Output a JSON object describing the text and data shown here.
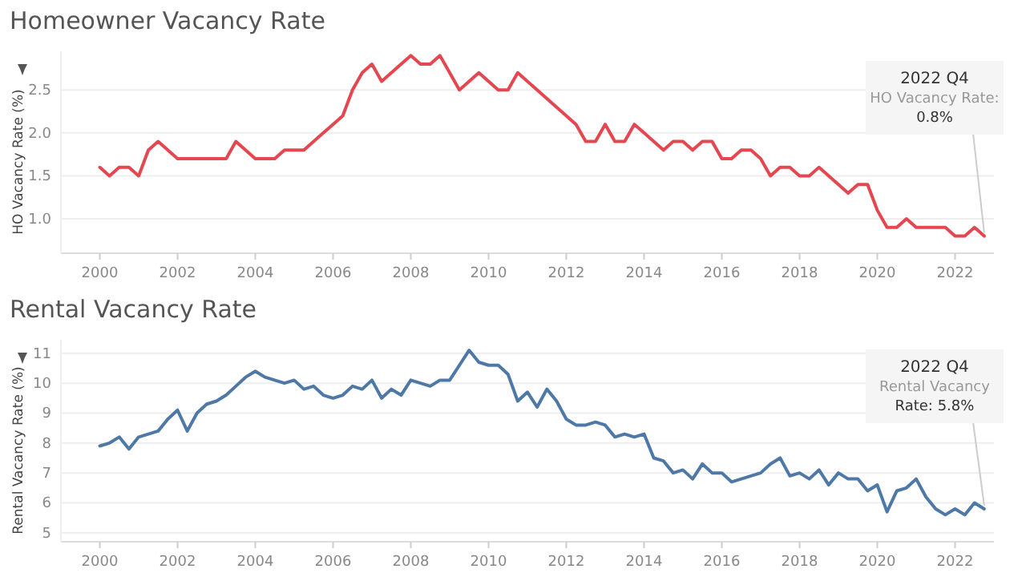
{
  "chart_data": [
    {
      "type": "line",
      "title": "Homeowner Vacancy Rate",
      "ylabel": "HO Vacancy Rate (%)",
      "x": [
        2000,
        2000.25,
        2000.5,
        2000.75,
        2001,
        2001.25,
        2001.5,
        2001.75,
        2002,
        2002.25,
        2002.5,
        2002.75,
        2003,
        2003.25,
        2003.5,
        2003.75,
        2004,
        2004.25,
        2004.5,
        2004.75,
        2005,
        2005.25,
        2005.5,
        2005.75,
        2006,
        2006.25,
        2006.5,
        2006.75,
        2007,
        2007.25,
        2007.5,
        2007.75,
        2008,
        2008.25,
        2008.5,
        2008.75,
        2009,
        2009.25,
        2009.5,
        2009.75,
        2010,
        2010.25,
        2010.5,
        2010.75,
        2011,
        2011.25,
        2011.5,
        2011.75,
        2012,
        2012.25,
        2012.5,
        2012.75,
        2013,
        2013.25,
        2013.5,
        2013.75,
        2014,
        2014.25,
        2014.5,
        2014.75,
        2015,
        2015.25,
        2015.5,
        2015.75,
        2016,
        2016.25,
        2016.5,
        2016.75,
        2017,
        2017.25,
        2017.5,
        2017.75,
        2018,
        2018.25,
        2018.5,
        2018.75,
        2019,
        2019.25,
        2019.5,
        2019.75,
        2020,
        2020.25,
        2020.5,
        2020.75,
        2021,
        2021.25,
        2021.5,
        2021.75,
        2022,
        2022.25,
        2022.5,
        2022.75
      ],
      "series": [
        {
          "color": "#e4474f",
          "values": [
            1.6,
            1.5,
            1.6,
            1.6,
            1.5,
            1.8,
            1.9,
            1.8,
            1.7,
            1.7,
            1.7,
            1.7,
            1.7,
            1.7,
            1.9,
            1.8,
            1.7,
            1.7,
            1.7,
            1.8,
            1.8,
            1.8,
            1.9,
            2.0,
            2.1,
            2.2,
            2.5,
            2.7,
            2.8,
            2.6,
            2.7,
            2.8,
            2.9,
            2.8,
            2.8,
            2.9,
            2.7,
            2.5,
            2.6,
            2.7,
            2.6,
            2.5,
            2.5,
            2.7,
            2.6,
            2.5,
            2.4,
            2.3,
            2.2,
            2.1,
            1.9,
            1.9,
            2.1,
            1.9,
            1.9,
            2.1,
            2.0,
            1.9,
            1.8,
            1.9,
            1.9,
            1.8,
            1.9,
            1.9,
            1.7,
            1.7,
            1.8,
            1.8,
            1.7,
            1.5,
            1.6,
            1.6,
            1.5,
            1.5,
            1.6,
            1.5,
            1.4,
            1.3,
            1.4,
            1.4,
            1.1,
            0.9,
            0.9,
            1.0,
            0.9,
            0.9,
            0.9,
            0.9,
            0.8,
            0.8,
            0.9,
            0.8
          ]
        }
      ],
      "xlim": [
        1999,
        2023
      ],
      "xticks": [
        2000,
        2002,
        2004,
        2006,
        2008,
        2010,
        2012,
        2014,
        2016,
        2018,
        2020,
        2022
      ],
      "ylim": [
        0.6,
        2.95
      ],
      "yticks": [
        {
          "value": 1,
          "label": "1.0"
        },
        {
          "value": 1.5,
          "label": "1.5"
        },
        {
          "value": 2,
          "label": "2.0"
        },
        {
          "value": 2.5,
          "label": "2.5"
        }
      ],
      "grid": "y",
      "line_style": "solid",
      "annotations": [
        {
          "text": "2022 Q4\nHO Vacancy Rate:\n0.8%",
          "x": 2022.75,
          "y": 0.8
        }
      ]
    },
    {
      "type": "line",
      "title": "Rental Vacancy Rate",
      "ylabel": "Rental Vacancy Rate (%)",
      "x": [
        2000,
        2000.25,
        2000.5,
        2000.75,
        2001,
        2001.25,
        2001.5,
        2001.75,
        2002,
        2002.25,
        2002.5,
        2002.75,
        2003,
        2003.25,
        2003.5,
        2003.75,
        2004,
        2004.25,
        2004.5,
        2004.75,
        2005,
        2005.25,
        2005.5,
        2005.75,
        2006,
        2006.25,
        2006.5,
        2006.75,
        2007,
        2007.25,
        2007.5,
        2007.75,
        2008,
        2008.25,
        2008.5,
        2008.75,
        2009,
        2009.25,
        2009.5,
        2009.75,
        2010,
        2010.25,
        2010.5,
        2010.75,
        2011,
        2011.25,
        2011.5,
        2011.75,
        2012,
        2012.25,
        2012.5,
        2012.75,
        2013,
        2013.25,
        2013.5,
        2013.75,
        2014,
        2014.25,
        2014.5,
        2014.75,
        2015,
        2015.25,
        2015.5,
        2015.75,
        2016,
        2016.25,
        2016.5,
        2016.75,
        2017,
        2017.25,
        2017.5,
        2017.75,
        2018,
        2018.25,
        2018.5,
        2018.75,
        2019,
        2019.25,
        2019.5,
        2019.75,
        2020,
        2020.25,
        2020.5,
        2020.75,
        2021,
        2021.25,
        2021.5,
        2021.75,
        2022,
        2022.25,
        2022.5,
        2022.75
      ],
      "series": [
        {
          "color": "#4e79a7",
          "values": [
            7.9,
            8.0,
            8.2,
            7.8,
            8.2,
            8.3,
            8.4,
            8.8,
            9.1,
            8.4,
            9.0,
            9.3,
            9.4,
            9.6,
            9.9,
            10.2,
            10.4,
            10.2,
            10.1,
            10.0,
            10.1,
            9.8,
            9.9,
            9.6,
            9.5,
            9.6,
            9.9,
            9.8,
            10.1,
            9.5,
            9.8,
            9.6,
            10.1,
            10.0,
            9.9,
            10.1,
            10.1,
            10.6,
            11.1,
            10.7,
            10.6,
            10.6,
            10.3,
            9.4,
            9.7,
            9.2,
            9.8,
            9.4,
            8.8,
            8.6,
            8.6,
            8.7,
            8.6,
            8.2,
            8.3,
            8.2,
            8.3,
            7.5,
            7.4,
            7.0,
            7.1,
            6.8,
            7.3,
            7.0,
            7.0,
            6.7,
            6.8,
            6.9,
            7.0,
            7.3,
            7.5,
            6.9,
            7.0,
            6.8,
            7.1,
            6.6,
            7.0,
            6.8,
            6.8,
            6.4,
            6.6,
            5.7,
            6.4,
            6.5,
            6.8,
            6.2,
            5.8,
            5.6,
            5.8,
            5.6,
            6.0,
            5.8
          ]
        }
      ],
      "xlim": [
        1999,
        2023
      ],
      "xticks": [
        2000,
        2002,
        2004,
        2006,
        2008,
        2010,
        2012,
        2014,
        2016,
        2018,
        2020,
        2022
      ],
      "ylim": [
        4.7,
        11.45
      ],
      "yticks": [
        5,
        6,
        7,
        8,
        9,
        10,
        11
      ],
      "grid": "y",
      "line_style": "solid",
      "annotations": [
        {
          "text": "2022 Q4\nRental Vacancy\nRate: 5.8%",
          "x": 2022.75,
          "y": 5.8
        }
      ]
    }
  ]
}
